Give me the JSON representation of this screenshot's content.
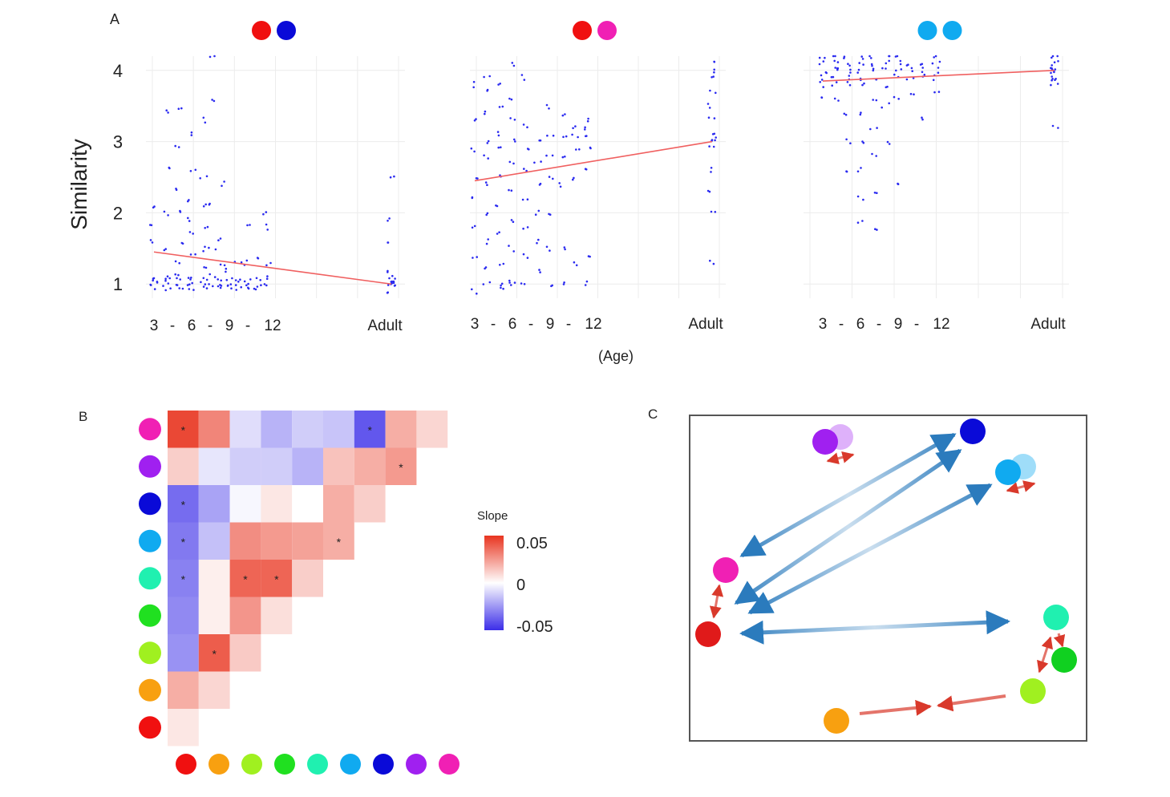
{
  "panel_labels": {
    "a": "A",
    "b": "B",
    "c": "C"
  },
  "colors": {
    "red": "#f01010",
    "blue": "#0a0ad8",
    "magenta": "#f020b4",
    "cyan": "#10aaf0",
    "purple": "#a020f0",
    "teal": "#20f0b0",
    "green": "#20e020",
    "lime": "#a0f020",
    "orange": "#f8a010",
    "point": "#2a2af0",
    "trend": "#f06060",
    "arrow_blue": "#2b7bbd",
    "arrow_red": "#d9392b"
  },
  "chart_data": [
    {
      "type": "scatter",
      "title_pair": [
        "red",
        "blue"
      ],
      "ylabel": "Similarity",
      "xlabel": "(Age)",
      "x_tick_labels": [
        "3",
        "-",
        "6",
        "-",
        "9",
        "-",
        "12",
        "Adult"
      ],
      "y_tick_labels": [
        "1",
        "2",
        "3",
        "4"
      ],
      "ylim": [
        0.8,
        4.2
      ],
      "trend": {
        "start": 1.45,
        "end": 1.0
      },
      "point_groups": [
        {
          "x": 3,
          "values": [
            1.0,
            1.05,
            0.95,
            1.1,
            1.6,
            1.8,
            2.1
          ]
        },
        {
          "x": 4,
          "values": [
            1.0,
            0.95,
            1.1,
            1.05,
            1.5,
            2.0,
            2.6,
            3.4
          ]
        },
        {
          "x": 5,
          "values": [
            1.0,
            1.05,
            0.95,
            1.1,
            1.3,
            1.6,
            2.0,
            2.3,
            2.9,
            3.5
          ]
        },
        {
          "x": 6,
          "values": [
            1.0,
            0.95,
            1.05,
            1.1,
            1.4,
            1.7,
            1.9,
            2.2,
            2.6,
            3.1
          ]
        },
        {
          "x": 7,
          "values": [
            1.0,
            1.05,
            0.95,
            1.2,
            1.5,
            1.8,
            2.1,
            2.5,
            3.3
          ]
        },
        {
          "x": 7.6,
          "values": [
            1.0,
            1.1,
            1.5,
            2.1,
            3.6,
            4.2
          ]
        },
        {
          "x": 8.4,
          "values": [
            1.0,
            0.95,
            1.05,
            1.3,
            1.6,
            2.4
          ]
        },
        {
          "x": 9,
          "values": [
            1.0,
            1.05,
            0.95,
            1.2
          ]
        },
        {
          "x": 9.7,
          "values": [
            1.0,
            0.95,
            1.05,
            1.3
          ]
        },
        {
          "x": 10.5,
          "values": [
            1.0,
            1.05,
            0.95,
            1.3,
            1.8
          ]
        },
        {
          "x": 11.3,
          "values": [
            1.0,
            0.95,
            1.05,
            1.4
          ]
        },
        {
          "x": 12,
          "values": [
            1.0,
            1.1,
            1.3,
            1.8,
            2.0
          ]
        },
        {
          "x": "Adult",
          "values": [
            0.95,
            1.0,
            1.0,
            1.05,
            1.05,
            1.1,
            0.9,
            1.0,
            1.2,
            1.6,
            1.9,
            2.5
          ]
        }
      ]
    },
    {
      "type": "scatter",
      "title_pair": [
        "red",
        "magenta"
      ],
      "ylabel": "Similarity",
      "xlabel": "(Age)",
      "x_tick_labels": [
        "3",
        "-",
        "6",
        "-",
        "9",
        "-",
        "12",
        "Adult"
      ],
      "y_tick_labels": [
        "1",
        "2",
        "3",
        "4"
      ],
      "ylim": [
        0.8,
        4.2
      ],
      "trend": {
        "start": 2.45,
        "end": 3.0
      },
      "point_groups": [
        {
          "x": 3,
          "values": [
            0.9,
            1.4,
            1.8,
            2.2,
            2.5,
            2.9,
            3.3,
            3.8
          ]
        },
        {
          "x": 4,
          "values": [
            1.0,
            1.2,
            1.6,
            2.0,
            2.4,
            2.8,
            3.0,
            3.4,
            3.7,
            3.9
          ]
        },
        {
          "x": 5,
          "values": [
            0.95,
            1.0,
            1.3,
            1.7,
            2.1,
            2.5,
            2.9,
            3.1,
            3.5,
            3.8
          ]
        },
        {
          "x": 6,
          "values": [
            1.0,
            1.05,
            1.5,
            1.9,
            2.3,
            2.7,
            3.0,
            3.3,
            3.6,
            4.1
          ]
        },
        {
          "x": 7,
          "values": [
            1.0,
            1.4,
            1.8,
            2.2,
            2.6,
            2.9,
            3.2,
            3.9
          ]
        },
        {
          "x": 8,
          "values": [
            1.2,
            1.6,
            2.0,
            2.4,
            2.7,
            3.0
          ]
        },
        {
          "x": 9,
          "values": [
            0.95,
            1.5,
            2.0,
            2.5,
            2.8,
            3.1,
            3.5
          ]
        },
        {
          "x": 10,
          "values": [
            1.0,
            1.5,
            2.4,
            2.8,
            3.1,
            3.4
          ]
        },
        {
          "x": 11,
          "values": [
            1.3,
            2.5,
            2.9,
            3.1,
            3.2
          ]
        },
        {
          "x": 12,
          "values": [
            1.0,
            1.4,
            2.6,
            2.9,
            3.1,
            3.2,
            3.3
          ]
        },
        {
          "x": "Adult",
          "values": [
            1.3,
            2.0,
            2.3,
            2.6,
            2.9,
            3.0,
            3.05,
            3.1,
            3.3,
            3.5,
            3.7,
            3.9,
            4.0,
            4.1
          ]
        }
      ]
    },
    {
      "type": "scatter",
      "title_pair": [
        "cyan",
        "cyan"
      ],
      "ylabel": "Similarity",
      "xlabel": "(Age)",
      "x_tick_labels": [
        "3",
        "-",
        "6",
        "-",
        "9",
        "-",
        "12",
        "Adult"
      ],
      "y_tick_labels": [
        "1",
        "2",
        "3",
        "4"
      ],
      "ylim": [
        0.8,
        4.2
      ],
      "trend": {
        "start": 3.85,
        "end": 4.0
      },
      "point_groups": [
        {
          "x": 3,
          "values": [
            3.6,
            3.8,
            3.9,
            4.0,
            4.1,
            4.2
          ]
        },
        {
          "x": 4,
          "values": [
            3.6,
            3.8,
            3.9,
            4.0,
            4.05,
            4.1,
            4.2
          ]
        },
        {
          "x": 5,
          "values": [
            2.6,
            3.0,
            3.4,
            3.8,
            3.9,
            4.0,
            4.1,
            4.2
          ]
        },
        {
          "x": 6,
          "values": [
            1.9,
            2.2,
            2.6,
            3.0,
            3.4,
            3.8,
            3.9,
            4.0,
            4.1,
            4.2
          ]
        },
        {
          "x": 7,
          "values": [
            1.8,
            2.3,
            2.8,
            3.2,
            3.6,
            3.9,
            4.0,
            4.1,
            4.2
          ]
        },
        {
          "x": 8,
          "values": [
            3.0,
            3.5,
            3.8,
            4.0,
            4.1,
            4.2
          ]
        },
        {
          "x": 9,
          "values": [
            2.4,
            3.6,
            3.9,
            4.0,
            4.1,
            4.2
          ]
        },
        {
          "x": 10,
          "values": [
            3.7,
            3.9,
            4.0,
            4.1
          ]
        },
        {
          "x": 11,
          "values": [
            3.3,
            3.9,
            4.0,
            4.1
          ]
        },
        {
          "x": 12,
          "values": [
            3.7,
            3.9,
            4.0,
            4.1,
            4.2
          ]
        },
        {
          "x": "Adult",
          "values": [
            3.2,
            3.8,
            3.85,
            3.9,
            3.95,
            4.0,
            4.0,
            4.05,
            4.1,
            4.15,
            4.2
          ]
        }
      ]
    },
    {
      "type": "heatmap",
      "legend_title": "Slope",
      "legend_ticks": [
        "0.05",
        "0",
        "-0.05"
      ],
      "value_range": [
        -0.05,
        0.05
      ],
      "rows": [
        "magenta",
        "purple",
        "blue",
        "cyan",
        "teal",
        "green",
        "lime",
        "orange",
        "red"
      ],
      "columns": [
        "red",
        "orange",
        "lime",
        "green",
        "teal",
        "cyan",
        "blue",
        "purple",
        "magenta"
      ],
      "values": [
        [
          0.045,
          0.03,
          -0.008,
          -0.018,
          -0.012,
          -0.014,
          -0.04,
          0.02,
          0.01
        ],
        [
          0.012,
          -0.006,
          -0.012,
          -0.012,
          -0.018,
          0.015,
          0.02,
          0.025,
          null
        ],
        [
          -0.035,
          -0.022,
          -0.002,
          0.006,
          0.0,
          0.02,
          0.012,
          null,
          null
        ],
        [
          -0.032,
          -0.015,
          0.028,
          0.025,
          0.023,
          0.02,
          null,
          null,
          null
        ],
        [
          -0.03,
          0.004,
          0.038,
          0.038,
          0.012,
          null,
          null,
          null,
          null
        ],
        [
          -0.028,
          0.004,
          0.026,
          0.008,
          null,
          null,
          null,
          null,
          null
        ],
        [
          -0.026,
          0.04,
          0.013,
          null,
          null,
          null,
          null,
          null,
          null
        ],
        [
          0.02,
          0.01,
          null,
          null,
          null,
          null,
          null,
          null,
          null
        ],
        [
          0.006,
          null,
          null,
          null,
          null,
          null,
          null,
          null,
          null
        ]
      ],
      "significant": [
        [
          0,
          0
        ],
        [
          0,
          6
        ],
        [
          1,
          7
        ],
        [
          2,
          0
        ],
        [
          3,
          0
        ],
        [
          3,
          5
        ],
        [
          4,
          0
        ],
        [
          4,
          2
        ],
        [
          4,
          3
        ],
        [
          6,
          1
        ]
      ],
      "significance_marker": "*"
    }
  ]
}
